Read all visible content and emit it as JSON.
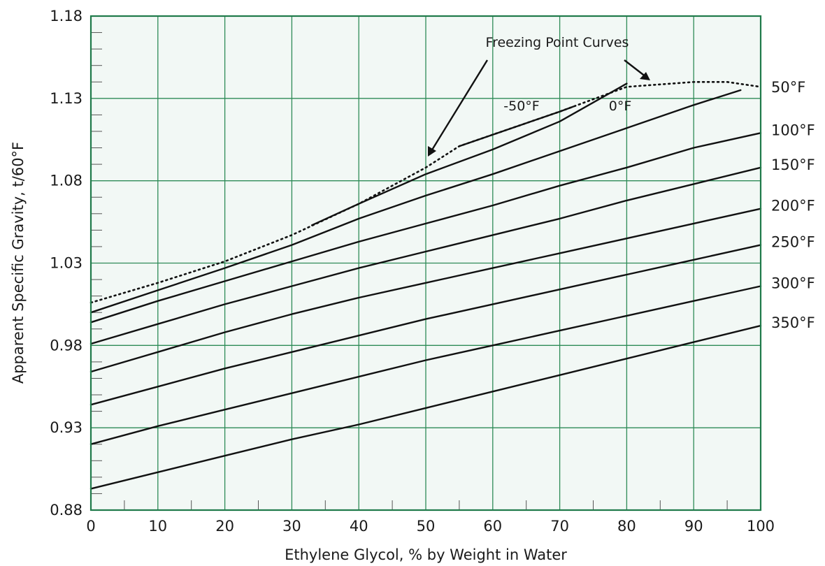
{
  "chart_data": {
    "type": "line",
    "title": "",
    "xlabel": "Ethylene Glycol, % by Weight in Water",
    "ylabel": "Apparent Specific Gravity, t/60°F",
    "xlim": [
      0,
      100
    ],
    "ylim": [
      0.88,
      1.18
    ],
    "x_ticks": [
      "0",
      "10",
      "20",
      "30",
      "40",
      "50",
      "60",
      "70",
      "80",
      "90",
      "100"
    ],
    "y_ticks": [
      "0.88",
      "0.93",
      "0.98",
      "1.03",
      "1.08",
      "1.13",
      "1.18"
    ],
    "grid": true,
    "colors": {
      "background": "#f2f8f5",
      "grid": "#2e8b57",
      "frame": "#1f7a4a",
      "line": "#111111"
    },
    "series": [
      {
        "name": "-50°F",
        "x": [
          55,
          60,
          65,
          70,
          72
        ],
        "y": [
          1.101,
          1.108,
          1.115,
          1.122,
          1.125
        ]
      },
      {
        "name": "0°F",
        "x": [
          33,
          40,
          50,
          60,
          70,
          80
        ],
        "y": [
          1.053,
          1.066,
          1.084,
          1.099,
          1.116,
          1.139
        ]
      },
      {
        "name": "50°F",
        "x": [
          0,
          10,
          20,
          30,
          40,
          50,
          60,
          70,
          80,
          90,
          97
        ],
        "y": [
          1.0,
          1.0135,
          1.027,
          1.041,
          1.057,
          1.071,
          1.084,
          1.098,
          1.112,
          1.126,
          1.135
        ]
      },
      {
        "name": "100°F",
        "x": [
          0,
          10,
          20,
          30,
          40,
          50,
          60,
          70,
          80,
          90,
          100
        ],
        "y": [
          0.994,
          1.007,
          1.019,
          1.031,
          1.043,
          1.054,
          1.065,
          1.077,
          1.088,
          1.1,
          1.109
        ]
      },
      {
        "name": "150°F",
        "x": [
          0,
          10,
          20,
          30,
          40,
          50,
          60,
          70,
          80,
          90,
          100
        ],
        "y": [
          0.981,
          0.993,
          1.005,
          1.016,
          1.027,
          1.037,
          1.047,
          1.057,
          1.068,
          1.078,
          1.088
        ]
      },
      {
        "name": "200°F",
        "x": [
          0,
          10,
          20,
          30,
          40,
          50,
          60,
          70,
          80,
          90,
          100
        ],
        "y": [
          0.964,
          0.976,
          0.988,
          0.999,
          1.009,
          1.018,
          1.027,
          1.036,
          1.045,
          1.054,
          1.063
        ]
      },
      {
        "name": "250°F",
        "x": [
          0,
          10,
          20,
          30,
          40,
          50,
          60,
          70,
          80,
          90,
          100
        ],
        "y": [
          0.944,
          0.955,
          0.966,
          0.976,
          0.986,
          0.996,
          1.005,
          1.014,
          1.023,
          1.032,
          1.041
        ]
      },
      {
        "name": "300°F",
        "x": [
          0,
          10,
          20,
          30,
          40,
          50,
          60,
          70,
          80,
          90,
          100
        ],
        "y": [
          0.92,
          0.931,
          0.941,
          0.951,
          0.961,
          0.971,
          0.98,
          0.989,
          0.998,
          1.007,
          1.016
        ]
      },
      {
        "name": "350°F",
        "x": [
          0,
          10,
          20,
          30,
          40,
          50,
          60,
          70,
          80,
          90,
          100
        ],
        "y": [
          0.893,
          0.903,
          0.913,
          0.923,
          0.932,
          0.942,
          0.952,
          0.962,
          0.972,
          0.982,
          0.992
        ]
      }
    ],
    "freezing_point_curve": {
      "x": [
        0,
        10,
        20,
        30,
        40,
        50,
        55,
        60,
        70,
        80,
        90,
        95,
        100
      ],
      "y": [
        1.006,
        1.018,
        1.031,
        1.047,
        1.066,
        1.088,
        1.101,
        1.108,
        1.122,
        1.137,
        1.14,
        1.14,
        1.137
      ]
    },
    "annotations": {
      "title_text": "Freezing Point Curves",
      "label_m50": "-50°F",
      "label_0": "0°F"
    }
  }
}
